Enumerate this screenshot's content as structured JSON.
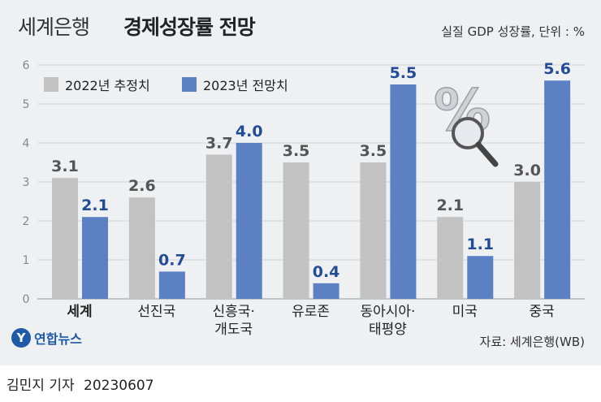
{
  "title": {
    "light": "세계은행",
    "bold": "경제성장률 전망"
  },
  "subtitle": "실질 GDP 성장률, 단위 : %",
  "source": "자료: 세계은행(WB)",
  "logo": {
    "mark": "Y",
    "text": "연합뉴스"
  },
  "credit": {
    "author": "김민지 기자",
    "date": "20230607"
  },
  "colors": {
    "series_2022": "#c2c2c2",
    "series_2023": "#5b80c4",
    "label_2023": "#234c96",
    "label_2022": "#555555",
    "background": "#eef0f2"
  },
  "chart_data": {
    "type": "bar",
    "categories": [
      "세계",
      "선진국",
      "신흥국·|개도국",
      "유로존",
      "동아시아·|태평양",
      "미국",
      "중국"
    ],
    "series": [
      {
        "name": "2022년 추정치",
        "values": [
          3.1,
          2.6,
          3.7,
          3.5,
          3.5,
          2.1,
          3.0
        ]
      },
      {
        "name": "2023년 전망치",
        "values": [
          2.1,
          0.7,
          4.0,
          0.4,
          5.5,
          1.1,
          5.6
        ]
      }
    ],
    "yticks": [
      0,
      1,
      2,
      3,
      4,
      5,
      6
    ],
    "ylim": [
      0,
      6
    ],
    "ylabel": "",
    "xlabel": "",
    "value_labels": [
      [
        "3.1",
        "2.6",
        "3.7",
        "3.5",
        "3.5",
        "2.1",
        "3.0"
      ],
      [
        "2.1",
        "0.7",
        "4.0",
        "0.4",
        "5.5",
        "1.1",
        "5.6"
      ]
    ],
    "bold_category": "세계",
    "grid": true
  }
}
